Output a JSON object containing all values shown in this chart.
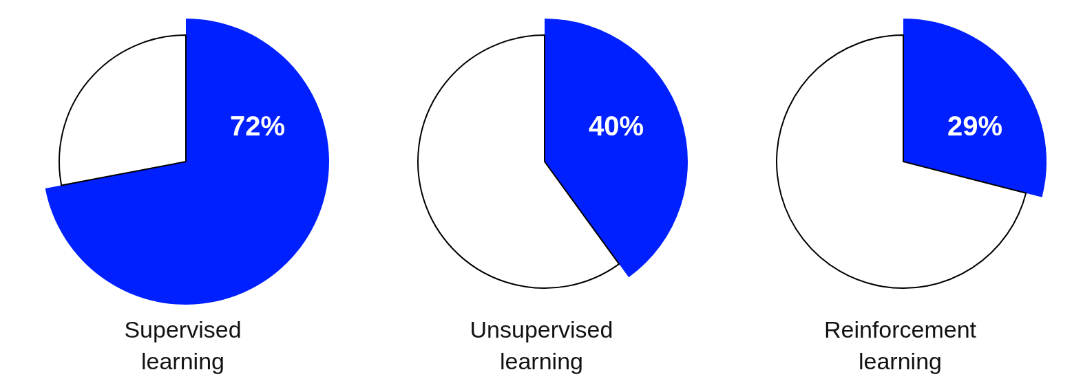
{
  "chart_data": [
    {
      "type": "pie",
      "title": "Supervised learning",
      "categories": [
        null,
        null
      ],
      "values": [
        72,
        28
      ],
      "colors": [
        "#0020ff",
        "#ffffff"
      ],
      "value_labels": [
        "72%",
        null
      ]
    },
    {
      "type": "pie",
      "title": "Unsupervised learning",
      "categories": [
        null,
        null
      ],
      "values": [
        40,
        60
      ],
      "colors": [
        "#0020ff",
        "#ffffff"
      ],
      "value_labels": [
        "40%",
        null
      ]
    },
    {
      "type": "pie",
      "title": "Reinforcement learning",
      "categories": [
        null,
        null
      ],
      "values": [
        29,
        71
      ],
      "colors": [
        "#0020ff",
        "#ffffff"
      ],
      "value_labels": [
        "29%",
        null
      ]
    }
  ]
}
